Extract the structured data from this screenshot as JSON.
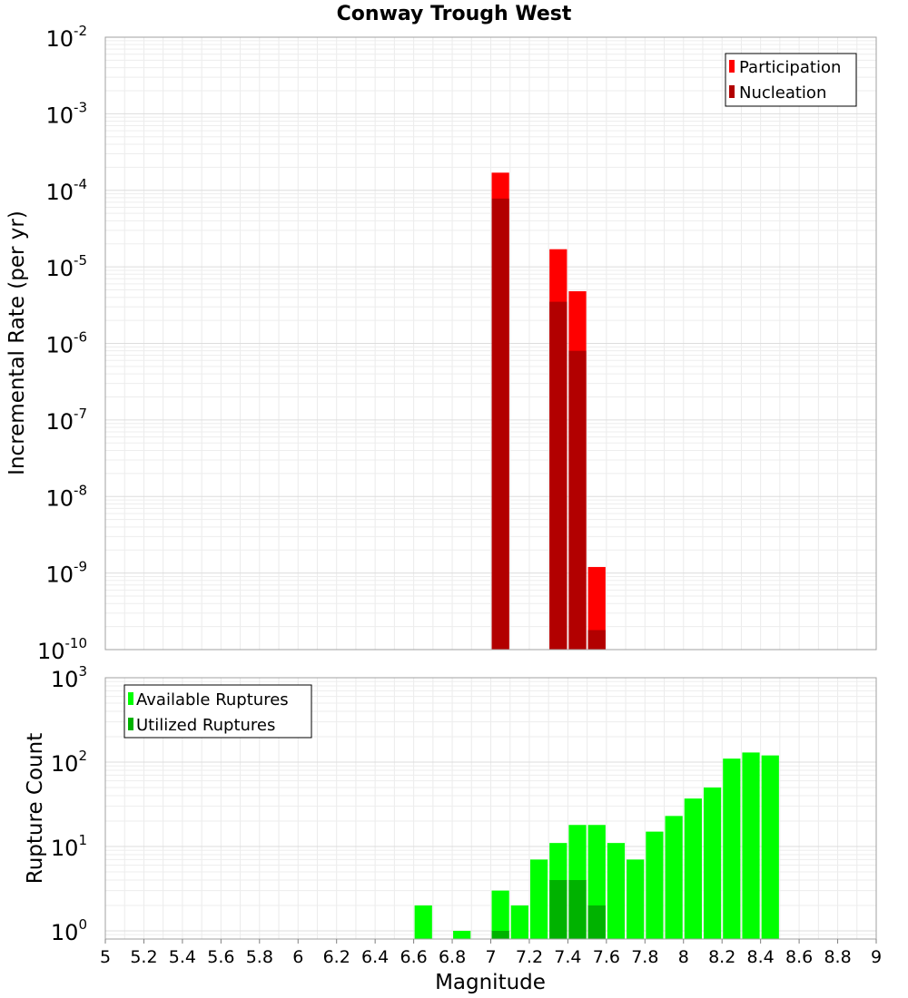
{
  "chart_data": [
    {
      "type": "bar",
      "title": "Conway Trough West",
      "xlabel": "",
      "ylabel": "Incremental Rate (per yr)",
      "yscale": "log",
      "ylim": [
        1e-10,
        0.01
      ],
      "xlim": [
        5,
        9
      ],
      "grid": true,
      "legend_position": "top-right",
      "ytick_labels": [
        {
          "base": "10",
          "exp": "-10",
          "value": 1e-10
        },
        {
          "base": "10",
          "exp": "-9",
          "value": 1e-09
        },
        {
          "base": "10",
          "exp": "-8",
          "value": 1e-08
        },
        {
          "base": "10",
          "exp": "-7",
          "value": 1e-07
        },
        {
          "base": "10",
          "exp": "-6",
          "value": 1e-06
        },
        {
          "base": "10",
          "exp": "-5",
          "value": 1e-05
        },
        {
          "base": "10",
          "exp": "-4",
          "value": 0.0001
        },
        {
          "base": "10",
          "exp": "-3",
          "value": 0.001
        },
        {
          "base": "10",
          "exp": "-2",
          "value": 0.01
        }
      ],
      "series": [
        {
          "name": "Participation",
          "color": "#ff0000",
          "x": [
            7.05,
            7.35,
            7.45,
            7.55
          ],
          "values": [
            0.00017,
            1.7e-05,
            4.8e-06,
            1.2e-09
          ]
        },
        {
          "name": "Nucleation",
          "color": "#b20000",
          "x": [
            7.05,
            7.35,
            7.45,
            7.55
          ],
          "values": [
            7.8e-05,
            3.5e-06,
            8e-07,
            1.8e-10
          ]
        }
      ]
    },
    {
      "type": "bar",
      "title": "",
      "xlabel": "Magnitude",
      "ylabel": "Rupture Count",
      "yscale": "log",
      "ylim": [
        0.8,
        1000
      ],
      "xlim": [
        5,
        9
      ],
      "grid": true,
      "legend_position": "top-left",
      "ytick_labels": [
        {
          "base": "10",
          "exp": "0",
          "value": 1
        },
        {
          "base": "10",
          "exp": "1",
          "value": 10
        },
        {
          "base": "10",
          "exp": "2",
          "value": 100
        },
        {
          "base": "10",
          "exp": "3",
          "value": 1000
        }
      ],
      "xtick_labels": [
        "5",
        "5.2",
        "5.4",
        "5.6",
        "5.8",
        "6",
        "6.2",
        "6.4",
        "6.6",
        "6.8",
        "7",
        "7.2",
        "7.4",
        "7.6",
        "7.8",
        "8",
        "8.2",
        "8.4",
        "8.6",
        "8.8",
        "9"
      ],
      "series": [
        {
          "name": "Available Ruptures",
          "color": "#00ff00",
          "x": [
            6.65,
            6.85,
            7.05,
            7.15,
            7.25,
            7.35,
            7.45,
            7.55,
            7.65,
            7.75,
            7.85,
            7.95,
            8.05,
            8.15,
            8.25,
            8.35,
            8.45
          ],
          "values": [
            2,
            1,
            3,
            2,
            7,
            11,
            18,
            18,
            11,
            7,
            15,
            23,
            37,
            50,
            110,
            130,
            120
          ]
        },
        {
          "name": "Utilized Ruptures",
          "color": "#00b200",
          "x": [
            7.05,
            7.35,
            7.45,
            7.55
          ],
          "values": [
            1,
            4,
            4,
            2
          ]
        }
      ]
    }
  ]
}
